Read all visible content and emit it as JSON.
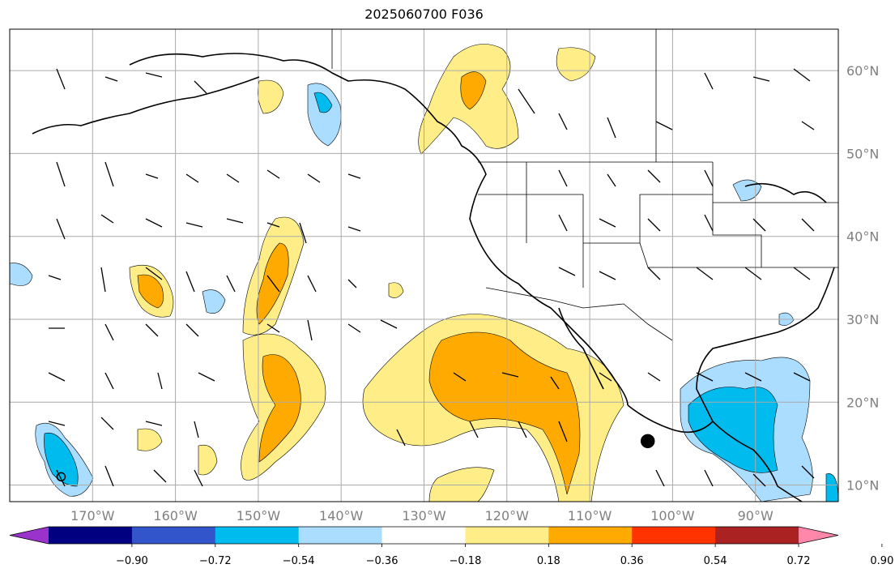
{
  "title": "2025060700 F036",
  "map": {
    "lon_range": [
      -180,
      -80
    ],
    "lat_range": [
      8,
      65
    ],
    "lon_ticks": [
      {
        "value": -170,
        "label": "170°W"
      },
      {
        "value": -160,
        "label": "160°W"
      },
      {
        "value": -150,
        "label": "150°W"
      },
      {
        "value": -140,
        "label": "140°W"
      },
      {
        "value": -130,
        "label": "130°W"
      },
      {
        "value": -120,
        "label": "120°W"
      },
      {
        "value": -110,
        "label": "110°W"
      },
      {
        "value": -100,
        "label": "100°W"
      },
      {
        "value": -90,
        "label": "90°W"
      }
    ],
    "lat_ticks": [
      {
        "value": 10,
        "label": "10°N"
      },
      {
        "value": 20,
        "label": "20°N"
      },
      {
        "value": 30,
        "label": "30°N"
      },
      {
        "value": 40,
        "label": "40°N"
      },
      {
        "value": 50,
        "label": "50°N"
      },
      {
        "value": 60,
        "label": "60°N"
      }
    ],
    "grid": true,
    "markers": [
      {
        "type": "filled-circle",
        "lon": -103.0,
        "lat": 15.3
      },
      {
        "type": "open-circle",
        "lon": -173.8,
        "lat": 11.0
      }
    ]
  },
  "colorbar": {
    "levels": [
      -0.9,
      -0.72,
      -0.54,
      -0.36,
      -0.18,
      0.18,
      0.36,
      0.54,
      0.72,
      0.9
    ],
    "labels": [
      "−0.90",
      "−0.72",
      "−0.54",
      "−0.36",
      "−0.18",
      "0.18",
      "0.36",
      "0.54",
      "0.72",
      "0.90"
    ],
    "colors": [
      "#9933cc",
      "#000080",
      "#3355cc",
      "#00bbee",
      "#aaddff",
      "#ffffff",
      "#ffee88",
      "#ffaa00",
      "#ff3300",
      "#aa2222",
      "#ff88aa"
    ],
    "extend": "both"
  }
}
